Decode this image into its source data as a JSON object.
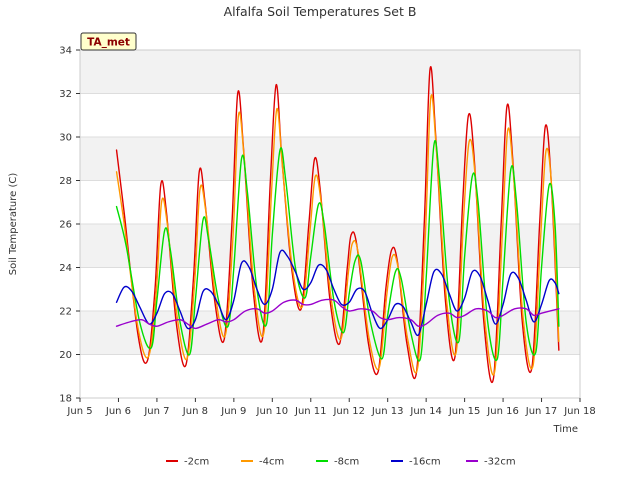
{
  "chart_data": {
    "type": "line",
    "title": "Alfalfa Soil Temperatures Set B",
    "xlabel": "Time",
    "ylabel": "Soil Temperature (C)",
    "badge": "TA_met",
    "xlim": [
      5,
      18
    ],
    "ylim": [
      18,
      34
    ],
    "x_ticks": [
      5,
      6,
      7,
      8,
      9,
      10,
      11,
      12,
      13,
      14,
      15,
      16,
      17,
      18
    ],
    "x_tick_labels": [
      "Jun 5",
      "Jun 6",
      "Jun 7",
      "Jun 8",
      "Jun 9",
      "Jun 10",
      "Jun 11",
      "Jun 12",
      "Jun 13",
      "Jun 14",
      "Jun 15",
      "Jun 16",
      "Jun 17",
      "Jun 18"
    ],
    "y_ticks": [
      18,
      20,
      22,
      24,
      26,
      28,
      30,
      32,
      34
    ],
    "y_tick_labels": [
      "18",
      "20",
      "22",
      "24",
      "26",
      "28",
      "30",
      "32",
      "34"
    ],
    "grid": "horizontal bands",
    "legend_position": "bottom",
    "series": [
      {
        "name": "-2cm",
        "color": "#dd0000",
        "points": [
          [
            5.95,
            29.4
          ],
          [
            6.15,
            26.5
          ],
          [
            6.5,
            21.0
          ],
          [
            6.75,
            19.7
          ],
          [
            6.95,
            23.0
          ],
          [
            7.1,
            27.8
          ],
          [
            7.25,
            26.5
          ],
          [
            7.5,
            21.5
          ],
          [
            7.75,
            19.5
          ],
          [
            7.95,
            23.5
          ],
          [
            8.1,
            28.4
          ],
          [
            8.25,
            27.0
          ],
          [
            8.5,
            22.5
          ],
          [
            8.75,
            20.7
          ],
          [
            8.95,
            26.0
          ],
          [
            9.1,
            32.0
          ],
          [
            9.25,
            29.5
          ],
          [
            9.5,
            23.0
          ],
          [
            9.75,
            20.8
          ],
          [
            9.95,
            28.0
          ],
          [
            10.1,
            32.4
          ],
          [
            10.25,
            29.0
          ],
          [
            10.5,
            24.0
          ],
          [
            10.75,
            22.1
          ],
          [
            10.95,
            26.0
          ],
          [
            11.1,
            29.0
          ],
          [
            11.25,
            27.5
          ],
          [
            11.5,
            22.5
          ],
          [
            11.75,
            20.5
          ],
          [
            11.95,
            24.0
          ],
          [
            12.05,
            25.5
          ],
          [
            12.2,
            25.0
          ],
          [
            12.5,
            20.5
          ],
          [
            12.75,
            19.2
          ],
          [
            12.95,
            23.0
          ],
          [
            13.1,
            24.8
          ],
          [
            13.25,
            24.3
          ],
          [
            13.5,
            20.5
          ],
          [
            13.75,
            19.2
          ],
          [
            13.95,
            26.0
          ],
          [
            14.1,
            33.1
          ],
          [
            14.25,
            30.0
          ],
          [
            14.5,
            22.5
          ],
          [
            14.75,
            19.9
          ],
          [
            14.95,
            27.0
          ],
          [
            15.1,
            31.0
          ],
          [
            15.25,
            29.0
          ],
          [
            15.5,
            21.5
          ],
          [
            15.75,
            18.9
          ],
          [
            15.95,
            26.0
          ],
          [
            16.1,
            31.4
          ],
          [
            16.25,
            29.0
          ],
          [
            16.5,
            21.5
          ],
          [
            16.75,
            19.4
          ],
          [
            16.95,
            26.0
          ],
          [
            17.1,
            30.5
          ],
          [
            17.25,
            28.0
          ],
          [
            17.45,
            20.2
          ]
        ]
      },
      {
        "name": "-4cm",
        "color": "#ff9900",
        "points": [
          [
            5.95,
            28.4
          ],
          [
            6.15,
            26.0
          ],
          [
            6.5,
            21.3
          ],
          [
            6.78,
            19.9
          ],
          [
            6.98,
            22.8
          ],
          [
            7.12,
            27.0
          ],
          [
            7.27,
            26.0
          ],
          [
            7.52,
            21.8
          ],
          [
            7.78,
            19.8
          ],
          [
            7.98,
            23.3
          ],
          [
            8.12,
            27.6
          ],
          [
            8.27,
            26.6
          ],
          [
            8.52,
            22.7
          ],
          [
            8.78,
            20.9
          ],
          [
            8.98,
            25.5
          ],
          [
            9.12,
            31.0
          ],
          [
            9.27,
            29.0
          ],
          [
            9.52,
            23.2
          ],
          [
            9.78,
            21.0
          ],
          [
            9.98,
            27.5
          ],
          [
            10.12,
            31.3
          ],
          [
            10.27,
            28.5
          ],
          [
            10.52,
            24.0
          ],
          [
            10.78,
            22.2
          ],
          [
            10.98,
            25.7
          ],
          [
            11.12,
            28.2
          ],
          [
            11.27,
            27.0
          ],
          [
            11.52,
            22.7
          ],
          [
            11.78,
            20.7
          ],
          [
            11.98,
            23.8
          ],
          [
            12.08,
            25.1
          ],
          [
            12.23,
            24.7
          ],
          [
            12.52,
            20.7
          ],
          [
            12.78,
            19.4
          ],
          [
            12.98,
            22.8
          ],
          [
            13.12,
            24.5
          ],
          [
            13.27,
            24.0
          ],
          [
            13.52,
            20.7
          ],
          [
            13.78,
            19.4
          ],
          [
            13.98,
            25.5
          ],
          [
            14.12,
            31.8
          ],
          [
            14.27,
            29.3
          ],
          [
            14.52,
            22.7
          ],
          [
            14.78,
            20.1
          ],
          [
            14.98,
            26.5
          ],
          [
            15.12,
            29.8
          ],
          [
            15.27,
            28.3
          ],
          [
            15.52,
            21.7
          ],
          [
            15.78,
            19.2
          ],
          [
            15.98,
            25.5
          ],
          [
            16.12,
            30.3
          ],
          [
            16.27,
            28.3
          ],
          [
            16.52,
            21.7
          ],
          [
            16.78,
            19.5
          ],
          [
            16.98,
            25.5
          ],
          [
            17.12,
            29.4
          ],
          [
            17.27,
            27.5
          ],
          [
            17.45,
            20.6
          ]
        ]
      },
      {
        "name": "-8cm",
        "color": "#00dd00",
        "points": [
          [
            5.95,
            26.8
          ],
          [
            6.2,
            25.0
          ],
          [
            6.55,
            21.5
          ],
          [
            6.85,
            20.3
          ],
          [
            7.0,
            22.5
          ],
          [
            7.2,
            25.7
          ],
          [
            7.35,
            24.8
          ],
          [
            7.6,
            21.5
          ],
          [
            7.85,
            20.0
          ],
          [
            8.0,
            22.5
          ],
          [
            8.2,
            26.2
          ],
          [
            8.35,
            25.2
          ],
          [
            8.6,
            22.5
          ],
          [
            8.85,
            21.3
          ],
          [
            9.0,
            24.0
          ],
          [
            9.2,
            29.0
          ],
          [
            9.35,
            27.5
          ],
          [
            9.6,
            23.0
          ],
          [
            9.85,
            21.4
          ],
          [
            10.0,
            25.5
          ],
          [
            10.2,
            29.4
          ],
          [
            10.35,
            28.0
          ],
          [
            10.6,
            24.0
          ],
          [
            10.85,
            22.6
          ],
          [
            11.0,
            24.5
          ],
          [
            11.2,
            26.9
          ],
          [
            11.35,
            26.0
          ],
          [
            11.6,
            22.5
          ],
          [
            11.85,
            21.0
          ],
          [
            12.0,
            22.8
          ],
          [
            12.15,
            24.3
          ],
          [
            12.3,
            24.3
          ],
          [
            12.55,
            21.5
          ],
          [
            12.85,
            19.8
          ],
          [
            13.0,
            21.8
          ],
          [
            13.2,
            23.8
          ],
          [
            13.35,
            23.5
          ],
          [
            13.6,
            21.0
          ],
          [
            13.85,
            19.8
          ],
          [
            14.0,
            23.5
          ],
          [
            14.2,
            29.6
          ],
          [
            14.35,
            28.0
          ],
          [
            14.6,
            22.5
          ],
          [
            14.85,
            20.6
          ],
          [
            15.0,
            24.5
          ],
          [
            15.2,
            28.2
          ],
          [
            15.35,
            27.0
          ],
          [
            15.6,
            21.5
          ],
          [
            15.85,
            19.8
          ],
          [
            16.0,
            23.5
          ],
          [
            16.2,
            28.5
          ],
          [
            16.35,
            27.0
          ],
          [
            16.6,
            21.5
          ],
          [
            16.85,
            20.1
          ],
          [
            17.0,
            24.0
          ],
          [
            17.2,
            27.8
          ],
          [
            17.35,
            26.0
          ],
          [
            17.45,
            21.3
          ]
        ]
      },
      {
        "name": "-16cm",
        "color": "#0000cc",
        "points": [
          [
            5.95,
            22.4
          ],
          [
            6.15,
            23.1
          ],
          [
            6.35,
            22.9
          ],
          [
            6.55,
            22.2
          ],
          [
            6.8,
            21.4
          ],
          [
            7.0,
            21.9
          ],
          [
            7.2,
            22.8
          ],
          [
            7.4,
            22.8
          ],
          [
            7.6,
            22.0
          ],
          [
            7.8,
            21.2
          ],
          [
            8.0,
            21.6
          ],
          [
            8.2,
            22.9
          ],
          [
            8.4,
            22.9
          ],
          [
            8.6,
            22.3
          ],
          [
            8.8,
            21.6
          ],
          [
            9.0,
            22.5
          ],
          [
            9.2,
            24.2
          ],
          [
            9.4,
            24.0
          ],
          [
            9.6,
            23.0
          ],
          [
            9.8,
            22.3
          ],
          [
            10.0,
            23.0
          ],
          [
            10.2,
            24.7
          ],
          [
            10.4,
            24.5
          ],
          [
            10.6,
            23.8
          ],
          [
            10.8,
            23.0
          ],
          [
            11.0,
            23.3
          ],
          [
            11.2,
            24.1
          ],
          [
            11.4,
            23.9
          ],
          [
            11.6,
            23.0
          ],
          [
            11.8,
            22.3
          ],
          [
            12.0,
            22.4
          ],
          [
            12.2,
            23.0
          ],
          [
            12.4,
            22.9
          ],
          [
            12.6,
            21.9
          ],
          [
            12.8,
            21.2
          ],
          [
            13.0,
            21.6
          ],
          [
            13.2,
            22.3
          ],
          [
            13.4,
            22.2
          ],
          [
            13.6,
            21.5
          ],
          [
            13.8,
            20.9
          ],
          [
            14.0,
            22.3
          ],
          [
            14.2,
            23.8
          ],
          [
            14.4,
            23.7
          ],
          [
            14.6,
            22.8
          ],
          [
            14.8,
            22.0
          ],
          [
            15.0,
            22.6
          ],
          [
            15.2,
            23.8
          ],
          [
            15.4,
            23.6
          ],
          [
            15.6,
            22.5
          ],
          [
            15.8,
            21.4
          ],
          [
            16.0,
            22.3
          ],
          [
            16.2,
            23.7
          ],
          [
            16.4,
            23.5
          ],
          [
            16.6,
            22.5
          ],
          [
            16.8,
            21.5
          ],
          [
            17.0,
            22.3
          ],
          [
            17.2,
            23.4
          ],
          [
            17.35,
            23.3
          ],
          [
            17.45,
            22.8
          ]
        ]
      },
      {
        "name": "-32cm",
        "color": "#9900cc",
        "points": [
          [
            5.95,
            21.3
          ],
          [
            6.3,
            21.5
          ],
          [
            6.6,
            21.6
          ],
          [
            6.8,
            21.4
          ],
          [
            7.0,
            21.3
          ],
          [
            7.3,
            21.5
          ],
          [
            7.6,
            21.6
          ],
          [
            7.8,
            21.4
          ],
          [
            8.0,
            21.2
          ],
          [
            8.3,
            21.4
          ],
          [
            8.6,
            21.6
          ],
          [
            8.8,
            21.5
          ],
          [
            9.0,
            21.6
          ],
          [
            9.3,
            22.0
          ],
          [
            9.6,
            22.1
          ],
          [
            9.8,
            21.9
          ],
          [
            10.0,
            22.0
          ],
          [
            10.3,
            22.4
          ],
          [
            10.6,
            22.5
          ],
          [
            10.8,
            22.3
          ],
          [
            11.0,
            22.3
          ],
          [
            11.3,
            22.5
          ],
          [
            11.6,
            22.5
          ],
          [
            11.8,
            22.2
          ],
          [
            12.0,
            22.0
          ],
          [
            12.3,
            22.1
          ],
          [
            12.6,
            22.0
          ],
          [
            12.8,
            21.7
          ],
          [
            13.0,
            21.6
          ],
          [
            13.3,
            21.7
          ],
          [
            13.6,
            21.6
          ],
          [
            13.8,
            21.3
          ],
          [
            14.0,
            21.4
          ],
          [
            14.3,
            21.8
          ],
          [
            14.6,
            21.9
          ],
          [
            14.8,
            21.7
          ],
          [
            15.0,
            21.8
          ],
          [
            15.3,
            22.1
          ],
          [
            15.6,
            22.0
          ],
          [
            15.8,
            21.7
          ],
          [
            16.0,
            21.8
          ],
          [
            16.3,
            22.1
          ],
          [
            16.6,
            22.1
          ],
          [
            16.8,
            21.8
          ],
          [
            17.0,
            21.9
          ],
          [
            17.45,
            22.1
          ]
        ]
      }
    ]
  }
}
